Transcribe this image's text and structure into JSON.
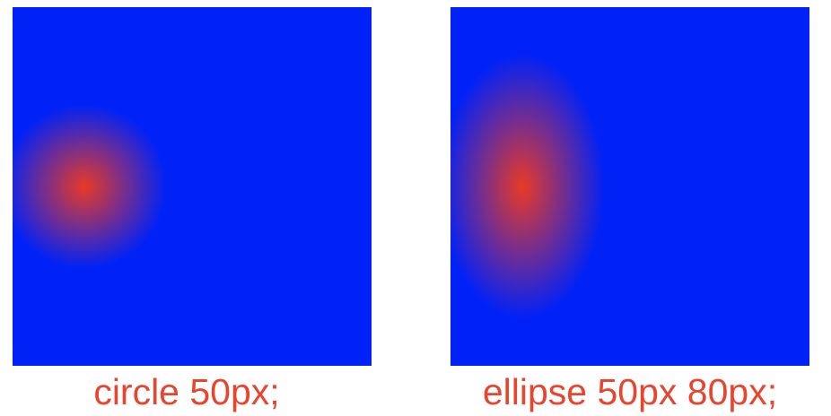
{
  "demos": [
    {
      "caption": "circle 50px;",
      "gradient_shape": "circle",
      "center_color": "#e83a26",
      "edge_color": "#0022f7"
    },
    {
      "caption": "ellipse 50px 80px;",
      "gradient_shape": "ellipse",
      "center_color": "#e83a26",
      "edge_color": "#0022f7"
    }
  ],
  "caption_color": "#e8452f"
}
